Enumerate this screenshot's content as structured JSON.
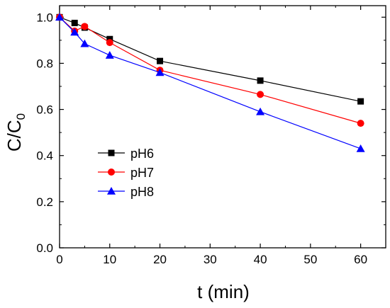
{
  "chart_data": {
    "type": "line",
    "title": "",
    "xlabel": "t (min)",
    "ylabel": {
      "main": "C/C",
      "sub": "0"
    },
    "xlim": [
      0,
      65
    ],
    "ylim": [
      0.0,
      1.05
    ],
    "xticks": [
      0,
      10,
      20,
      30,
      40,
      50,
      60
    ],
    "xtick_labels": [
      "0",
      "10",
      "20",
      "30",
      "40",
      "50",
      "60"
    ],
    "yticks": [
      0.0,
      0.2,
      0.4,
      0.6,
      0.8,
      1.0
    ],
    "ytick_labels": [
      "0.0",
      "0.2",
      "0.4",
      "0.6",
      "0.8",
      "1.0"
    ],
    "grid": false,
    "legend_position": "middle-left",
    "series": [
      {
        "name": "pH6",
        "color": "#000000",
        "marker": "square",
        "x": [
          0,
          3,
          5,
          10,
          20,
          40,
          60
        ],
        "y": [
          1.0,
          0.975,
          0.955,
          0.905,
          0.81,
          0.725,
          0.635
        ]
      },
      {
        "name": "pH7",
        "color": "#ff0000",
        "marker": "circle",
        "x": [
          0,
          3,
          5,
          10,
          20,
          40,
          60
        ],
        "y": [
          1.0,
          0.94,
          0.96,
          0.89,
          0.77,
          0.665,
          0.54
        ]
      },
      {
        "name": "pH8",
        "color": "#0000ff",
        "marker": "triangle",
        "x": [
          0,
          3,
          5,
          10,
          20,
          40,
          60
        ],
        "y": [
          1.0,
          0.935,
          0.885,
          0.835,
          0.76,
          0.59,
          0.43
        ]
      }
    ]
  }
}
